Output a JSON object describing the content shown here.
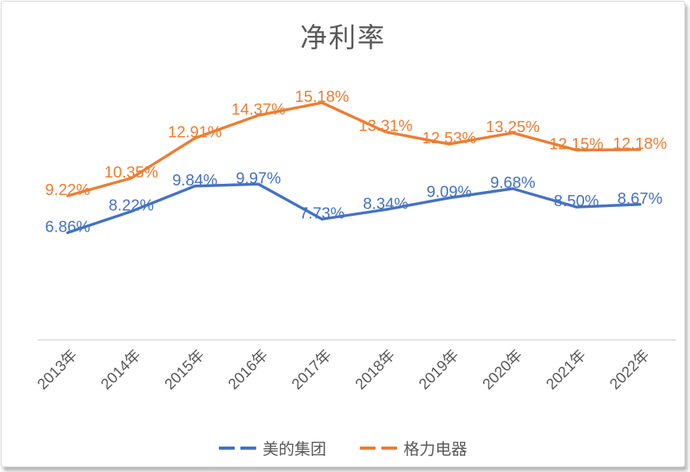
{
  "title": "净利率",
  "chart_data": {
    "type": "line",
    "title": "净利率",
    "categories": [
      "2013年",
      "2014年",
      "2015年",
      "2016年",
      "2017年",
      "2018年",
      "2019年",
      "2020年",
      "2021年",
      "2022年"
    ],
    "series": [
      {
        "name": "美的集团",
        "color": "#4472C4",
        "values": [
          6.86,
          8.22,
          9.84,
          9.97,
          7.73,
          8.34,
          9.09,
          9.68,
          8.5,
          8.67
        ]
      },
      {
        "name": "格力电器",
        "color": "#ED7D31",
        "values": [
          9.22,
          10.35,
          12.91,
          14.37,
          15.18,
          13.31,
          12.53,
          13.25,
          12.15,
          12.18
        ]
      }
    ],
    "value_suffix": "%",
    "decimals": 2,
    "ylim": [
      0,
      16
    ],
    "grid": false,
    "y_axis_visible": false,
    "legend_position": "bottom",
    "data_labels": "above"
  },
  "colors": {
    "title_text": "#595959",
    "axis_text": "#595959",
    "axis_line": "#d9d9d9",
    "series_blue": "#4472C4",
    "series_orange": "#ED7D31"
  }
}
